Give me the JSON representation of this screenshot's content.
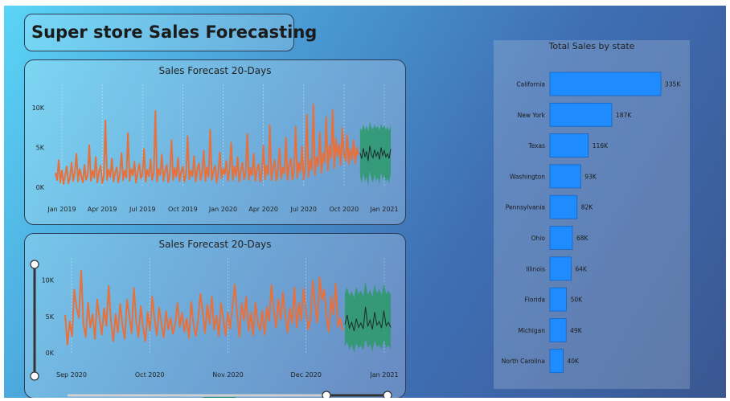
{
  "header": {
    "title": "Super store Sales Forecasting"
  },
  "colors": {
    "actual": "#e8703a",
    "forecast_band": "#2e9a6c",
    "forecast_line": "#1c2b2a",
    "bar": "#1e8bff",
    "bar_border": "#1565c0"
  },
  "icons": {
    "slider_handle": "circle-handle"
  },
  "chart_data": [
    {
      "id": "forecast_full",
      "type": "line",
      "title": "Sales Forecast 20-Days",
      "x_ticks": [
        "Jan 2019",
        "Apr 2019",
        "Jul 2019",
        "Oct 2019",
        "Jan 2020",
        "Apr 2020",
        "Jul 2020",
        "Oct 2020",
        "Jan 2021"
      ],
      "y_ticks": [
        "10K",
        "5K",
        "0K"
      ],
      "ylim": [
        0,
        11500
      ],
      "x_range": [
        "2019-01-01",
        "2021-01-25"
      ],
      "forecast_start": "2021-01-01",
      "forecast_days": 20,
      "series": [
        {
          "role": "actual",
          "values": [
            1800,
            900,
            3400,
            600,
            2100,
            400,
            1500,
            2600,
            500,
            1200,
            3100,
            800,
            1900,
            4200,
            700,
            2300,
            1400,
            600,
            2800,
            900,
            1600,
            5300,
            800,
            2100,
            1200,
            3800,
            600,
            1900,
            2700,
            500,
            1400,
            8400,
            900,
            2200,
            1300,
            3600,
            700,
            1800,
            2500,
            600,
            1700,
            4300,
            900,
            2100,
            1200,
            6800,
            800,
            2300,
            1500,
            3200,
            600,
            1900,
            2900,
            1100,
            1600,
            4800,
            700,
            2200,
            1400,
            3500,
            900,
            1800,
            9600,
            700,
            2300,
            1500,
            4100,
            800,
            2000,
            2800,
            600,
            1700,
            5900,
            900,
            2400,
            1300,
            3700,
            800,
            1900,
            2600,
            700,
            1600,
            6400,
            1000,
            2100,
            1400,
            3900,
            700,
            2200,
            3000,
            900,
            1800,
            4600,
            800,
            2500,
            1300,
            7200,
            900,
            2000,
            2700,
            600,
            1900,
            4400,
            1100,
            2300,
            1600,
            3300,
            800,
            2100,
            5600,
            900,
            2600,
            1400,
            3800,
            700,
            2000,
            3100,
            1000,
            1700,
            6700,
            900,
            2400,
            1500,
            4200,
            800,
            2200,
            2900,
            700,
            1900,
            5200,
            1000,
            2700,
            1600,
            7800,
            900,
            2300,
            3400,
            800,
            2000,
            4900,
            1100,
            2500,
            1700,
            6200,
            900,
            2800,
            3600,
            1000,
            2100,
            7600,
            1200,
            3100,
            1900,
            5100,
            1000,
            2600,
            9100,
            1300,
            3400,
            2200,
            10400,
            1500,
            3800,
            2700,
            6900,
            1800,
            4300,
            3100,
            8800,
            2100,
            5200,
            3600,
            9700,
            2400,
            6100,
            3900,
            5400,
            2800,
            7400,
            4200,
            3300,
            6600,
            2900,
            4800,
            3500,
            5900,
            3000,
            5000,
            4000
          ],
          "unit_note": ""
        },
        {
          "role": "forecast",
          "values": [
            4300,
            3600,
            4900,
            3800,
            4500,
            3300,
            5200,
            4100,
            3700,
            4700,
            3900,
            4400,
            3500,
            5000,
            4000,
            4600,
            3800,
            4200,
            3600,
            4800
          ]
        },
        {
          "role": "forecast_upper",
          "values": [
            7400,
            7100,
            7900,
            7200,
            7700,
            7000,
            8200,
            7500,
            7300,
            7900,
            7400,
            7700,
            7100,
            8000,
            7400,
            7800,
            7200,
            7600,
            7100,
            7800
          ]
        },
        {
          "role": "forecast_lower",
          "values": [
            1400,
            500,
            1800,
            700,
            1300,
            200,
            2100,
            1000,
            600,
            1600,
            800,
            1200,
            400,
            1900,
            900,
            1500,
            700,
            1100,
            500,
            1700
          ]
        }
      ]
    },
    {
      "id": "forecast_zoom",
      "type": "line",
      "title": "Sales Forecast 20-Days",
      "x_ticks": [
        "Sep 2020",
        "Oct 2020",
        "Nov 2020",
        "Dec 2020",
        "Jan 2021"
      ],
      "y_ticks": [
        "10K",
        "5K",
        "0K"
      ],
      "ylim": [
        0,
        11500
      ],
      "x_range": [
        "2020-08-28",
        "2021-01-21"
      ],
      "forecast_start": "2021-01-01",
      "series": [
        {
          "role": "actual",
          "values": [
            5200,
            1100,
            4300,
            2300,
            8700,
            6200,
            4800,
            11300,
            3900,
            2200,
            6900,
            3500,
            5300,
            1900,
            7300,
            4700,
            2500,
            6100,
            3700,
            9200,
            4300,
            1600,
            5300,
            2800,
            6700,
            3900,
            1900,
            7300,
            5100,
            2700,
            8900,
            4400,
            2200,
            6400,
            3500,
            1600,
            5600,
            3100,
            7700,
            4600,
            2400,
            6200,
            4000,
            2100,
            5700,
            3200,
            4800,
            2600,
            4000,
            6800,
            3600,
            5500,
            2900,
            4700,
            2000,
            7000,
            3900,
            2300,
            4500,
            8100,
            5600,
            2700,
            6600,
            4000,
            7700,
            3200,
            5100,
            2300,
            6800,
            4600,
            2400,
            5500,
            3300,
            6400,
            9400,
            5300,
            2200,
            6800,
            4500,
            7700,
            3000,
            5600,
            2400,
            6900,
            4200,
            3100,
            5800,
            2500,
            6300,
            4400,
            9300,
            5900,
            3500,
            7400,
            4600,
            8300,
            5200,
            2800,
            6100,
            4100,
            9000,
            3500,
            6900,
            4500,
            8800,
            5800,
            3200,
            4600,
            9900,
            6500,
            4100,
            10400,
            7300,
            8700,
            4900,
            2900,
            7700,
            5300,
            9500,
            3600,
            4700,
            3100
          ]
        },
        {
          "role": "forecast",
          "values": [
            3900,
            5200,
            3400,
            4200,
            3000,
            4700,
            3500,
            4100,
            3300,
            6300,
            3600,
            4500,
            3200,
            5600,
            3800,
            4300,
            3400,
            5800,
            3700,
            4200,
            3500
          ]
        },
        {
          "role": "forecast_upper",
          "values": [
            8200,
            9000,
            7900,
            8500,
            7600,
            9100,
            8100,
            8600,
            7800,
            9800,
            8000,
            8700,
            7700,
            9400,
            8200,
            8800,
            7900,
            9600,
            8100,
            8600,
            8000
          ]
        },
        {
          "role": "forecast_lower",
          "values": [
            900,
            1500,
            400,
            1100,
            0,
            1300,
            600,
            1000,
            300,
            1900,
            700,
            1200,
            200,
            1700,
            800,
            1100,
            400,
            1800,
            700,
            1000,
            500
          ]
        }
      ],
      "slider": {
        "x_start": 0.0,
        "x_end": 0.83,
        "y_start": 0.0,
        "y_end": 1.0
      }
    },
    {
      "id": "sales_by_state",
      "type": "bar",
      "orientation": "horizontal",
      "title": "Total Sales by state",
      "categories": [
        "California",
        "New York",
        "Texas",
        "Washington",
        "Pennsylvania",
        "Ohio",
        "Illinois",
        "Florida",
        "Michigan",
        "North Carolina"
      ],
      "values": [
        335,
        187,
        116,
        93,
        82,
        68,
        64,
        50,
        49,
        40
      ],
      "labels": [
        "335K",
        "187K",
        "116K",
        "93K",
        "82K",
        "68K",
        "64K",
        "50K",
        "49K",
        "40K"
      ],
      "unit": "K"
    }
  ]
}
